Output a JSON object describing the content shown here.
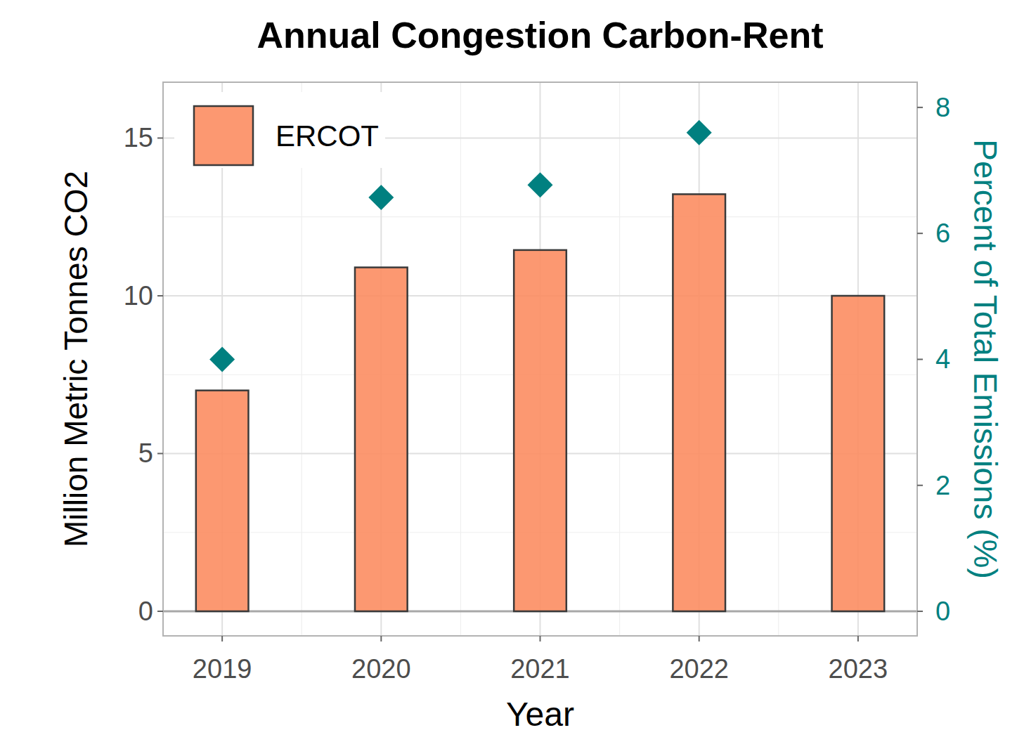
{
  "chart_data": {
    "type": "bar",
    "title": "Annual Congestion Carbon-Rent",
    "x_label": "Year",
    "y_label": "Million Metric Tonnes CO2",
    "y2_label": "Percent of Total Emissions (%)",
    "categories": [
      "2019",
      "2020",
      "2021",
      "2022",
      "2023"
    ],
    "series": [
      {
        "name": "ERCOT",
        "type": "bar",
        "color": "#fc8d62",
        "values": [
          7.0,
          10.9,
          11.45,
          13.22,
          10.0
        ]
      },
      {
        "type": "scatter",
        "marker": "diamond",
        "axis": "y2",
        "color": "#008080",
        "values": [
          4.0,
          6.57,
          6.77,
          7.6,
          null
        ]
      }
    ],
    "ylim": [
      -0.78,
      16.77
    ],
    "yticks": [
      0,
      5,
      10,
      15
    ],
    "y2lim": [
      -0.39,
      8.4
    ],
    "y2ticks": [
      0,
      2,
      4,
      6,
      8
    ],
    "grid": true,
    "legend": "top-left"
  }
}
